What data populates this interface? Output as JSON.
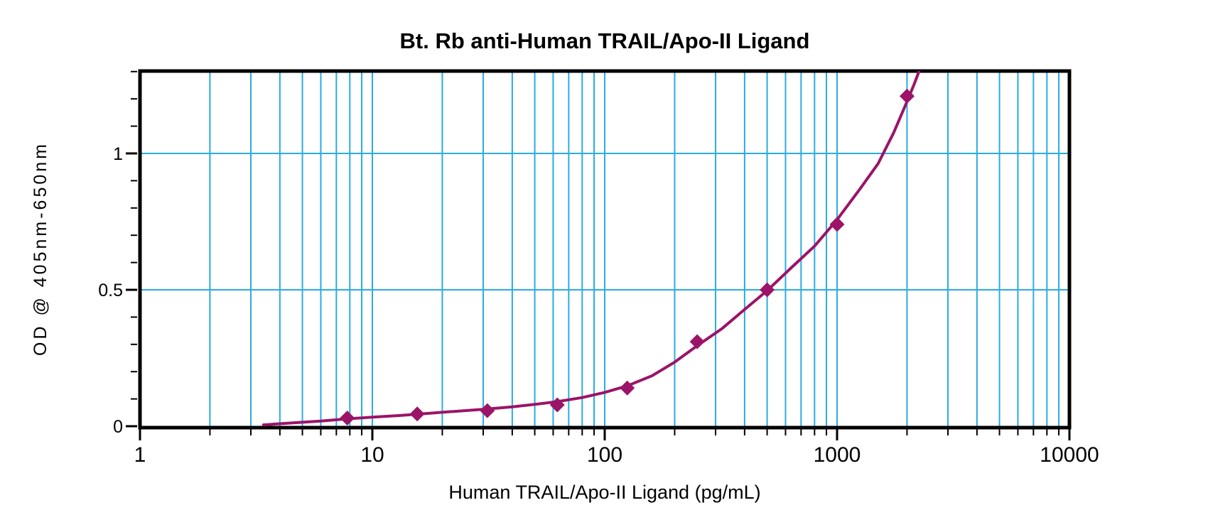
{
  "chart_data": {
    "type": "scatter",
    "title": "Bt. Rb anti-Human TRAIL/Apo-II Ligand",
    "xlabel": "Human TRAIL/Apo-II Ligand (pg/mL)",
    "ylabel": "OD @ 405nm-650nm",
    "x_scale": "log",
    "xlim": [
      1,
      10000
    ],
    "ylim": [
      0,
      1.3
    ],
    "grid": "on",
    "legend_position": "none",
    "x_major_ticks": [
      1,
      10,
      100,
      1000,
      10000
    ],
    "x_major_tick_labels": [
      "1",
      "10",
      "100",
      "1000",
      "10000"
    ],
    "x_minor_ticks": [
      2,
      3,
      4,
      5,
      6,
      7,
      8,
      9,
      20,
      30,
      40,
      50,
      60,
      70,
      80,
      90,
      200,
      300,
      400,
      500,
      600,
      700,
      800,
      900,
      2000,
      3000,
      4000,
      5000,
      6000,
      7000,
      8000,
      9000
    ],
    "y_major_ticks": [
      0,
      0.5,
      1
    ],
    "y_major_tick_labels": [
      "0",
      "0.5",
      "1"
    ],
    "y_minor_ticks": [
      0.1,
      0.2,
      0.3,
      0.4,
      0.6,
      0.7,
      0.8,
      0.9,
      1.1,
      1.2,
      1.3
    ],
    "x_gridlines": [
      2,
      3,
      4,
      5,
      6,
      7,
      8,
      9,
      10,
      20,
      30,
      40,
      50,
      60,
      70,
      80,
      90,
      100,
      200,
      300,
      400,
      500,
      600,
      700,
      800,
      900,
      1000,
      2000,
      3000,
      4000,
      5000,
      6000,
      7000,
      8000,
      9000
    ],
    "y_gridlines": [
      0.5,
      1.0
    ],
    "series": [
      {
        "name": "standard-points",
        "marker": "diamond",
        "x": [
          7.8,
          15.6,
          31.25,
          62.5,
          125,
          250,
          500,
          1000,
          2000
        ],
        "y": [
          0.03,
          0.045,
          0.057,
          0.078,
          0.14,
          0.31,
          0.5,
          0.74,
          1.21
        ]
      }
    ],
    "fit_curve": {
      "name": "standard-curve-fit",
      "samples": [
        [
          3.4,
          0.005
        ],
        [
          4.5,
          0.012
        ],
        [
          6,
          0.019
        ],
        [
          7.8,
          0.027
        ],
        [
          10,
          0.033
        ],
        [
          13,
          0.039
        ],
        [
          15.6,
          0.044
        ],
        [
          20,
          0.051
        ],
        [
          25,
          0.057
        ],
        [
          31.25,
          0.063
        ],
        [
          40,
          0.071
        ],
        [
          50,
          0.08
        ],
        [
          62.5,
          0.09
        ],
        [
          80,
          0.105
        ],
        [
          100,
          0.124
        ],
        [
          125,
          0.148
        ],
        [
          160,
          0.185
        ],
        [
          200,
          0.235
        ],
        [
          250,
          0.295
        ],
        [
          320,
          0.358
        ],
        [
          400,
          0.428
        ],
        [
          500,
          0.497
        ],
        [
          630,
          0.578
        ],
        [
          800,
          0.66
        ],
        [
          1000,
          0.757
        ],
        [
          1250,
          0.868
        ],
        [
          1500,
          0.962
        ],
        [
          1750,
          1.075
        ],
        [
          2000,
          1.19
        ],
        [
          2150,
          1.255
        ],
        [
          2320,
          1.33
        ]
      ]
    },
    "colors": {
      "series": "#9B1468",
      "grid": "#2AACE2",
      "axis": "#000000",
      "background": "#FFFFFF",
      "title_text": "#000000"
    }
  }
}
